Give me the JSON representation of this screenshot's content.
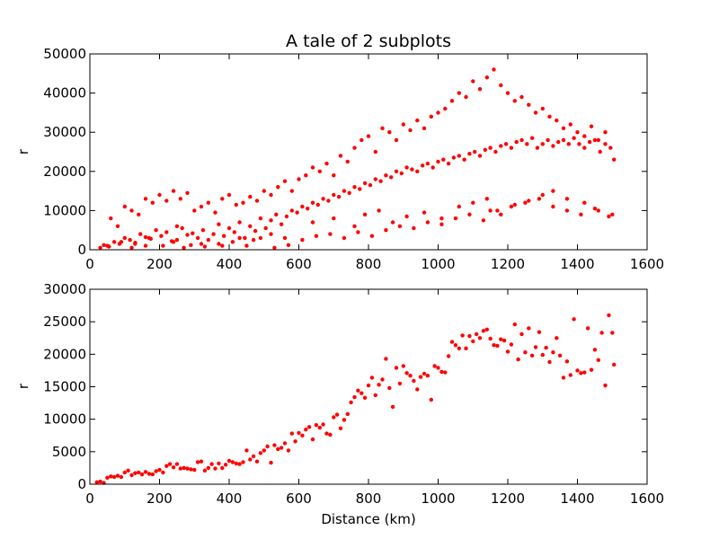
{
  "chart_data": [
    {
      "type": "scatter",
      "title": "A tale of 2 subplots",
      "xlabel": "",
      "ylabel": "r",
      "xlim": [
        0,
        1600
      ],
      "ylim": [
        0,
        50000
      ],
      "xticks": [
        0,
        200,
        400,
        600,
        800,
        1000,
        1200,
        1400,
        1600
      ],
      "yticks": [
        0,
        10000,
        20000,
        30000,
        40000,
        50000
      ],
      "color": "#ff0000",
      "grid": false,
      "series": [
        {
          "x": [
            30,
            40,
            55,
            70,
            85,
            100,
            115,
            130,
            145,
            160,
            175,
            190,
            205,
            220,
            235,
            250,
            265,
            280,
            295,
            310,
            325,
            340,
            355,
            370,
            385,
            400,
            415,
            430,
            445,
            460,
            475,
            490,
            505,
            520,
            535,
            550,
            565,
            580,
            595,
            610,
            625,
            640,
            655,
            670,
            685,
            700,
            715,
            730,
            745,
            760,
            775,
            790,
            805,
            820,
            835,
            850,
            865,
            880,
            895,
            910,
            925,
            940,
            955,
            970,
            985,
            1000,
            1015,
            1030,
            1045,
            1060,
            1075,
            1090,
            1105,
            1120,
            1135,
            1150,
            1165,
            1180,
            1195,
            1210,
            1225,
            1240,
            1255,
            1270,
            1285,
            1300,
            1315,
            1330,
            1345,
            1360,
            1375,
            1390,
            1405,
            1420,
            1435,
            1450,
            1465,
            1480,
            1495,
            1505,
            60,
            80,
            100,
            120,
            140,
            160,
            180,
            200,
            220,
            240,
            260,
            280,
            300,
            320,
            340,
            360,
            380,
            400,
            420,
            440,
            460,
            480,
            500,
            520,
            540,
            560,
            580,
            600,
            620,
            640,
            660,
            680,
            700,
            720,
            740,
            760,
            780,
            800,
            820,
            840,
            860,
            880,
            900,
            920,
            940,
            960,
            980,
            1000,
            1020,
            1040,
            1060,
            1080,
            1100,
            1120,
            1140,
            1160,
            1180,
            1200,
            1220,
            1240,
            1260,
            1280,
            1300,
            1320,
            1340,
            1360,
            1380,
            1400,
            1420,
            1440,
            1460,
            1480,
            50,
            90,
            130,
            170,
            210,
            250,
            290,
            330,
            370,
            410,
            450,
            490,
            530,
            570,
            610,
            650,
            690,
            730,
            770,
            810,
            850,
            890,
            930,
            970,
            1010,
            1050,
            1090,
            1130,
            1170,
            1210,
            1250,
            1290,
            1330,
            1370,
            1410,
            1450,
            1490,
            120,
            160,
            240,
            270,
            320,
            380,
            430,
            470,
            520,
            560,
            640,
            700,
            760,
            790,
            830,
            870,
            910,
            960,
            1010,
            1060,
            1100,
            1140,
            1150,
            1180,
            1220,
            1260,
            1300,
            1330,
            1370,
            1420,
            1460,
            1500
          ],
          "y": [
            500,
            1200,
            800,
            2000,
            1500,
            3000,
            2500,
            1800,
            4000,
            3200,
            2800,
            5000,
            3500,
            4500,
            2200,
            6000,
            5500,
            3800,
            4200,
            3000,
            5000,
            2500,
            4000,
            6500,
            3500,
            5500,
            4500,
            7000,
            3000,
            6000,
            4800,
            8000,
            5500,
            7500,
            9000,
            6500,
            8500,
            10000,
            9500,
            11000,
            10500,
            12000,
            11500,
            13000,
            12500,
            14000,
            13500,
            15000,
            14500,
            16000,
            15500,
            17000,
            16500,
            18000,
            17500,
            19000,
            18500,
            20000,
            19500,
            21000,
            20500,
            20000,
            21500,
            22000,
            21000,
            22500,
            23000,
            22000,
            23500,
            24000,
            23000,
            24500,
            25000,
            24000,
            25500,
            26000,
            25000,
            26500,
            27000,
            26000,
            27500,
            28000,
            27000,
            28500,
            26000,
            27000,
            28000,
            26500,
            27500,
            28000,
            27000,
            28500,
            27000,
            26000,
            27500,
            28000,
            25000,
            27000,
            26000,
            23000,
            8000,
            6000,
            11000,
            10000,
            9000,
            13000,
            12000,
            14000,
            12500,
            15000,
            13000,
            14500,
            10000,
            11000,
            12000,
            9500,
            13000,
            14000,
            11500,
            12000,
            13500,
            12500,
            15000,
            14000,
            16000,
            17500,
            15000,
            18000,
            19000,
            21000,
            20000,
            22000,
            19000,
            24000,
            22500,
            26000,
            28000,
            29000,
            25000,
            31000,
            30000,
            28000,
            32000,
            30500,
            33000,
            31000,
            34000,
            35000,
            36000,
            38000,
            40000,
            39000,
            43000,
            41000,
            44000,
            46000,
            42000,
            40000,
            38000,
            39000,
            37000,
            35000,
            36000,
            34000,
            33000,
            31000,
            32000,
            30000,
            29000,
            31500,
            28000,
            30000,
            1000,
            2000,
            1500,
            3000,
            1000,
            2500,
            1200,
            800,
            1500,
            2000,
            1000,
            3000,
            500,
            1200,
            2500,
            3500,
            4000,
            3000,
            4500,
            3500,
            5000,
            6000,
            5500,
            7000,
            6500,
            8000,
            9000,
            7500,
            10000,
            11000,
            12000,
            13000,
            11000,
            10000,
            9000,
            10500,
            8500,
            500,
            1000,
            2000,
            500,
            1500,
            1000,
            3000,
            2500,
            4000,
            3000,
            7000,
            8000,
            6000,
            9000,
            10000,
            7000,
            8500,
            9500,
            8000,
            11000,
            12000,
            13000,
            10000,
            9000,
            11500,
            12500,
            14000,
            15000,
            13000,
            12000,
            10000,
            9000
          ]
        }
      ]
    },
    {
      "type": "scatter",
      "title": "",
      "xlabel": "Distance (km)",
      "ylabel": "r",
      "xlim": [
        0,
        1600
      ],
      "ylim": [
        0,
        30000
      ],
      "xticks": [
        0,
        200,
        400,
        600,
        800,
        1000,
        1200,
        1400,
        1600
      ],
      "yticks": [
        0,
        5000,
        10000,
        15000,
        20000,
        25000,
        30000
      ],
      "color": "#ff0000",
      "grid": false,
      "series": [
        {
          "x": [
            20,
            30,
            40,
            50,
            60,
            70,
            80,
            90,
            100,
            110,
            120,
            130,
            140,
            150,
            160,
            170,
            180,
            190,
            200,
            210,
            220,
            230,
            240,
            250,
            260,
            270,
            280,
            290,
            300,
            310,
            320,
            330,
            340,
            350,
            360,
            370,
            380,
            390,
            400,
            410,
            420,
            430,
            440,
            450,
            460,
            470,
            480,
            490,
            500,
            510,
            520,
            530,
            540,
            550,
            560,
            570,
            580,
            590,
            600,
            610,
            620,
            630,
            640,
            650,
            660,
            670,
            680,
            690,
            700,
            710,
            720,
            730,
            740,
            750,
            760,
            770,
            780,
            790,
            800,
            810,
            820,
            830,
            840,
            850,
            860,
            870,
            880,
            890,
            900,
            910,
            920,
            930,
            940,
            950,
            960,
            970,
            980,
            990,
            1000,
            1010,
            1020,
            1030,
            1040,
            1050,
            1060,
            1070,
            1080,
            1090,
            1100,
            1110,
            1120,
            1130,
            1140,
            1150,
            1160,
            1170,
            1180,
            1190,
            1200,
            1210,
            1220,
            1230,
            1240,
            1250,
            1260,
            1270,
            1280,
            1290,
            1300,
            1310,
            1320,
            1330,
            1340,
            1350,
            1360,
            1370,
            1380,
            1390,
            1400,
            1410,
            1420,
            1430,
            1440,
            1450,
            1460,
            1470,
            1480,
            1490,
            1500,
            1505
          ],
          "y": [
            300,
            400,
            200,
            1000,
            1200,
            1100,
            1300,
            1100,
            1800,
            2100,
            1400,
            1700,
            1800,
            1500,
            1900,
            1600,
            1500,
            2000,
            2200,
            1800,
            2800,
            3100,
            2600,
            3100,
            2400,
            2500,
            2400,
            2300,
            2200,
            3400,
            3500,
            2100,
            2500,
            3100,
            2400,
            3200,
            2500,
            3000,
            3600,
            3400,
            3200,
            3100,
            3400,
            5200,
            3800,
            4300,
            3500,
            4800,
            5200,
            5800,
            3300,
            6000,
            5400,
            5600,
            6300,
            5200,
            7800,
            6600,
            7900,
            7500,
            8400,
            8800,
            6900,
            9100,
            8700,
            9200,
            7800,
            7600,
            10300,
            10700,
            8600,
            9900,
            10800,
            12600,
            13400,
            14400,
            14000,
            13300,
            15200,
            16400,
            13700,
            15300,
            16100,
            19300,
            14800,
            11900,
            17900,
            15500,
            18200,
            17100,
            16700,
            15900,
            14600,
            16500,
            17000,
            16700,
            13000,
            18200,
            17900,
            17300,
            17200,
            19700,
            21900,
            21400,
            20900,
            22900,
            20900,
            22800,
            22000,
            23100,
            22500,
            23600,
            23800,
            22400,
            21400,
            21300,
            22300,
            22100,
            20400,
            21500,
            24600,
            19200,
            23100,
            20300,
            24000,
            19800,
            21100,
            23400,
            19900,
            21000,
            18800,
            20300,
            22500,
            19800,
            16400,
            18900,
            16800,
            25400,
            17500,
            17100,
            17200,
            24000,
            17600,
            20700,
            19100,
            23300,
            15200,
            26000,
            23300,
            18400
          ]
        }
      ]
    }
  ]
}
